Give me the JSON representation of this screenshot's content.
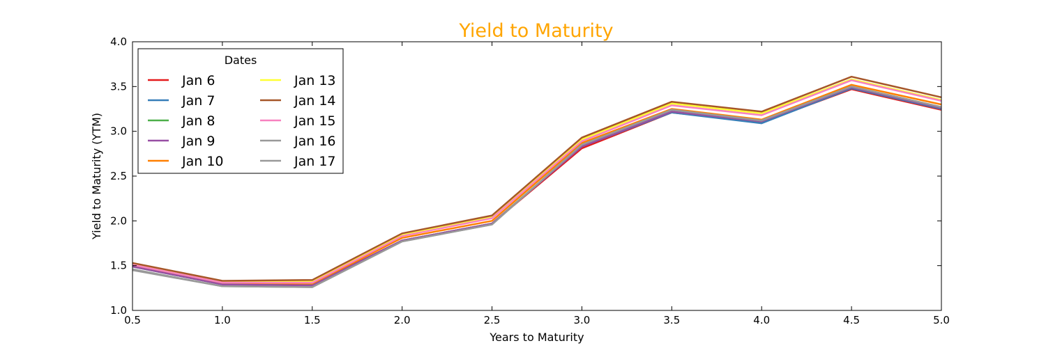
{
  "chart_data": {
    "type": "line",
    "title": "Yield to Maturity",
    "title_color": "#ffa500",
    "xlabel": "Years to Maturity",
    "ylabel": "Yield to Maturity (YTM)",
    "xlim": [
      0.5,
      5.0
    ],
    "ylim": [
      1.0,
      4.0
    ],
    "xticks": [
      "0.5",
      "1.0",
      "1.5",
      "2.0",
      "2.5",
      "3.0",
      "3.5",
      "4.0",
      "4.5",
      "5.0"
    ],
    "yticks": [
      "1.0",
      "1.5",
      "2.0",
      "2.5",
      "3.0",
      "3.5",
      "4.0"
    ],
    "grid": false,
    "legend": {
      "title": "Dates",
      "placement": "top-left",
      "columns": 2
    },
    "x": [
      0.5,
      1.0,
      1.5,
      2.0,
      2.5,
      3.0,
      3.5,
      4.0,
      4.5,
      5.0
    ],
    "series": [
      {
        "name": "Jan 6",
        "color": "#e41a1c",
        "values": [
          1.5,
          1.3,
          1.29,
          1.78,
          1.97,
          2.81,
          3.21,
          3.1,
          3.47,
          3.24
        ]
      },
      {
        "name": "Jan 7",
        "color": "#377eb8",
        "values": [
          1.49,
          1.29,
          1.28,
          1.78,
          1.97,
          2.83,
          3.21,
          3.09,
          3.48,
          3.25
        ]
      },
      {
        "name": "Jan 8",
        "color": "#4daf4a",
        "values": [
          1.49,
          1.29,
          1.28,
          1.78,
          1.97,
          2.84,
          3.22,
          3.11,
          3.49,
          3.26
        ]
      },
      {
        "name": "Jan 9",
        "color": "#984ea3",
        "values": [
          1.49,
          1.29,
          1.28,
          1.78,
          1.97,
          2.83,
          3.22,
          3.11,
          3.49,
          3.26
        ]
      },
      {
        "name": "Jan 10",
        "color": "#ff7f00",
        "values": [
          1.51,
          1.31,
          1.3,
          1.81,
          2.0,
          2.87,
          3.25,
          3.13,
          3.52,
          3.3
        ]
      },
      {
        "name": "Jan 13",
        "color": "#ffff33",
        "values": [
          1.52,
          1.32,
          1.32,
          1.84,
          2.04,
          2.91,
          3.31,
          3.2,
          3.58,
          3.35
        ]
      },
      {
        "name": "Jan 14",
        "color": "#a65628",
        "values": [
          1.53,
          1.33,
          1.34,
          1.86,
          2.06,
          2.93,
          3.33,
          3.22,
          3.61,
          3.38
        ]
      },
      {
        "name": "Jan 15",
        "color": "#f781bf",
        "values": [
          1.51,
          1.31,
          1.31,
          1.83,
          2.03,
          2.89,
          3.29,
          3.18,
          3.57,
          3.34
        ]
      },
      {
        "name": "Jan 16",
        "color": "#999999",
        "values": [
          1.46,
          1.27,
          1.26,
          1.77,
          1.96,
          2.85,
          3.24,
          3.12,
          3.5,
          3.27
        ]
      },
      {
        "name": "Jan 17",
        "color": "#999999",
        "values": [
          1.45,
          1.27,
          1.26,
          1.77,
          1.96,
          2.85,
          3.24,
          3.12,
          3.5,
          3.27
        ]
      }
    ]
  }
}
